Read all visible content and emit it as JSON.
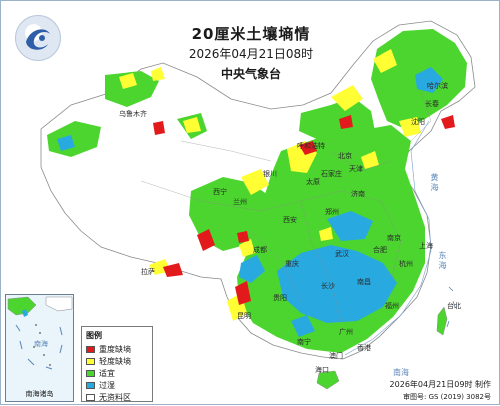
{
  "title": {
    "main": "20厘米土壤墒情",
    "datetime": "2026年04月21日08时",
    "issuer": "中央气象台"
  },
  "legend": {
    "title": "图例",
    "items": [
      {
        "label": "重度缺墒",
        "color": "#e31a1c"
      },
      {
        "label": "轻度缺墒",
        "color": "#ffff33"
      },
      {
        "label": "适宜",
        "color": "#4cd52f"
      },
      {
        "label": "过湿",
        "color": "#28a9e0"
      },
      {
        "label": "无资料区",
        "color": "#ffffff"
      }
    ]
  },
  "inset": {
    "caption": "南海诸岛",
    "sea_label": "南海"
  },
  "footer": {
    "made": "2026年04月21日09时 制作",
    "review_code": "审图号: GS (2019) 3082号"
  },
  "city_labels": [
    "北京",
    "天津",
    "石家庄",
    "太原",
    "济南",
    "郑州",
    "西安",
    "兰州",
    "西宁",
    "银川",
    "呼和浩特",
    "沈阳",
    "长春",
    "哈尔滨",
    "上海",
    "南京",
    "杭州",
    "合肥",
    "武汉",
    "长沙",
    "南昌",
    "福州",
    "台北",
    "广州",
    "南宁",
    "海口",
    "香港",
    "澳门",
    "成都",
    "重庆",
    "贵阳",
    "昆明",
    "拉萨",
    "乌鲁木齐"
  ],
  "sea_labels": [
    "黄海",
    "东海",
    "南海"
  ],
  "colors": {
    "severe_drought": "#e31a1c",
    "light_drought": "#ffff33",
    "suitable": "#4cd52f",
    "wet": "#28a9e0",
    "no_data": "#ffffff",
    "sea": "#e9f4fb",
    "border": "#8a8a8a"
  }
}
